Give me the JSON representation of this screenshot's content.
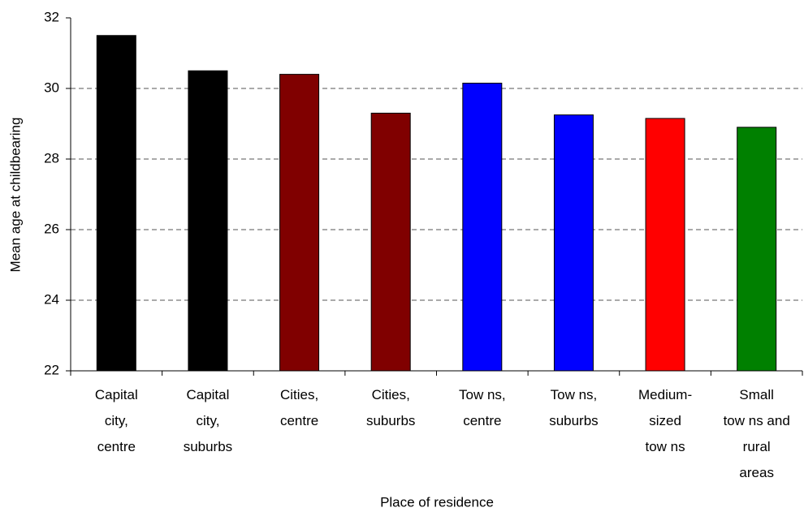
{
  "chart_data": {
    "type": "bar",
    "y_label": "Mean age at childbearing",
    "x_label": "Place of residence",
    "categories": [
      "Capital\ncity,\ncentre",
      "Capital\ncity,\nsuburbs",
      "Cities,\ncentre",
      "Cities,\nsuburbs",
      "Tow ns,\ncentre",
      "Tow ns,\nsuburbs",
      "Medium-\nsized\ntow ns",
      "Small\ntow ns and\nrural\nareas"
    ],
    "values": [
      31.5,
      30.5,
      30.4,
      29.3,
      30.15,
      29.25,
      29.15,
      28.9
    ],
    "colors": [
      "#000000",
      "#000000",
      "#800000",
      "#800000",
      "#0000ff",
      "#0000ff",
      "#ff0000",
      "#008000"
    ],
    "ylim": [
      22,
      32
    ],
    "yticks": [
      22,
      24,
      26,
      28,
      30,
      32
    ],
    "grid": true
  }
}
